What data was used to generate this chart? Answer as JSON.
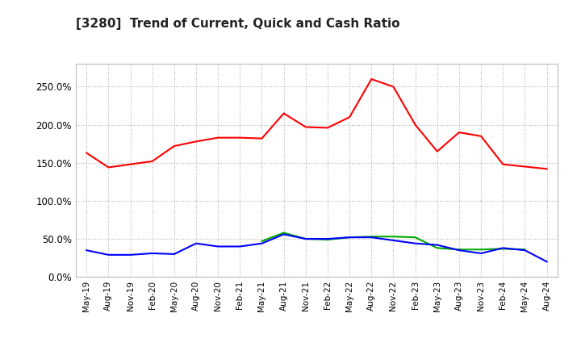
{
  "title": "[3280]  Trend of Current, Quick and Cash Ratio",
  "labels": [
    "May-19",
    "Aug-19",
    "Nov-19",
    "Feb-20",
    "May-20",
    "Aug-20",
    "Nov-20",
    "Feb-21",
    "May-21",
    "Aug-21",
    "Nov-21",
    "Feb-22",
    "May-22",
    "Aug-22",
    "Nov-22",
    "Feb-23",
    "May-23",
    "Aug-23",
    "Nov-23",
    "Feb-24",
    "May-24",
    "Aug-24"
  ],
  "current_ratio": [
    1.63,
    1.44,
    1.48,
    1.52,
    1.72,
    1.78,
    1.83,
    1.83,
    1.82,
    2.15,
    1.97,
    1.96,
    2.1,
    2.6,
    2.5,
    2.0,
    1.65,
    1.9,
    1.85,
    1.48,
    1.45,
    1.42
  ],
  "quick_ratio": [
    null,
    null,
    null,
    null,
    null,
    null,
    null,
    null,
    0.47,
    0.58,
    0.5,
    0.49,
    0.52,
    0.53,
    0.53,
    0.52,
    0.38,
    0.36,
    0.36,
    0.37,
    0.36,
    null
  ],
  "cash_ratio": [
    0.35,
    0.29,
    0.29,
    0.31,
    0.3,
    0.44,
    0.4,
    0.4,
    0.44,
    0.56,
    0.5,
    0.5,
    0.52,
    0.52,
    0.48,
    0.44,
    0.42,
    0.35,
    0.31,
    0.38,
    0.35,
    0.2
  ],
  "current_color": "#FF0000",
  "quick_color": "#00AA00",
  "cash_color": "#0000FF",
  "background_color": "#FFFFFF",
  "plot_bg_color": "#FFFFFF",
  "grid_color": "#AAAAAA",
  "ylim": [
    0.0,
    2.8
  ],
  "yticks": [
    0.0,
    0.5,
    1.0,
    1.5,
    2.0,
    2.5
  ],
  "ytick_labels": [
    "0.0%",
    "50.0%",
    "100.0%",
    "150.0%",
    "200.0%",
    "250.0%"
  ]
}
